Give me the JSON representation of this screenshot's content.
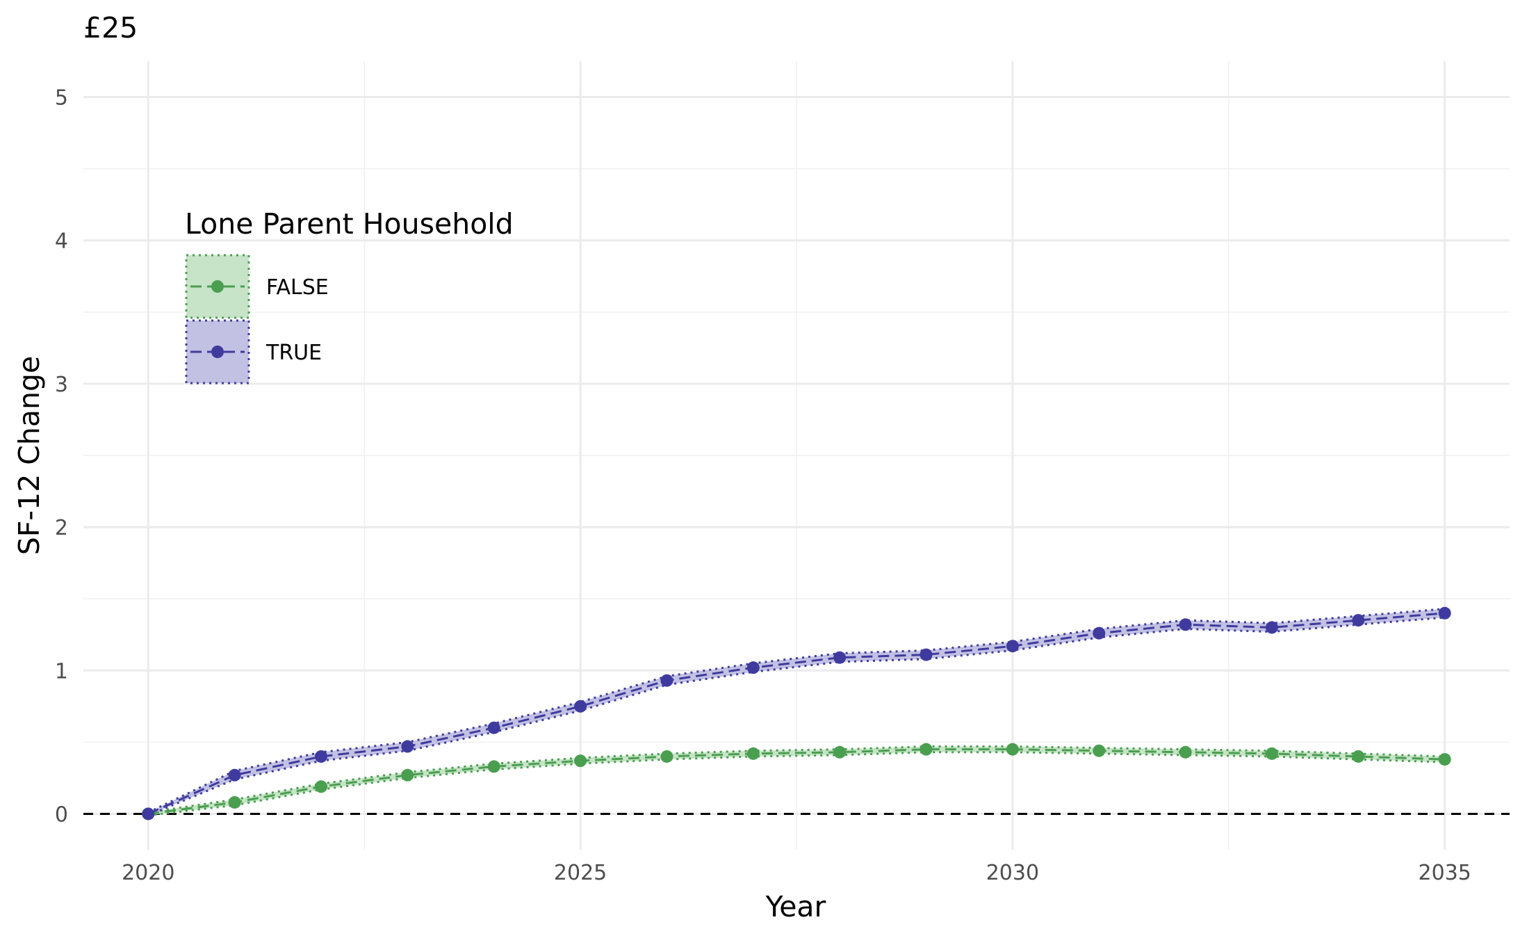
{
  "chart_data": {
    "type": "line",
    "title": "£25",
    "xlabel": "Year",
    "ylabel": "SF-12 Change",
    "xlim": [
      2019.25,
      2035.75
    ],
    "ylim": [
      -0.25,
      5.25
    ],
    "x_ticks": [
      2020,
      2025,
      2030,
      2035
    ],
    "y_ticks": [
      0,
      1,
      2,
      3,
      4,
      5
    ],
    "grid": true,
    "reference_line": {
      "y": 0,
      "style": "dashed",
      "color": "#000000"
    },
    "legend": {
      "title": "Lone Parent Household",
      "position": "top-left"
    },
    "x": [
      2020,
      2021,
      2022,
      2023,
      2024,
      2025,
      2026,
      2027,
      2028,
      2029,
      2030,
      2031,
      2032,
      2033,
      2034,
      2035
    ],
    "series": [
      {
        "name": "FALSE",
        "color": "#4a9e4f",
        "fill": "#c7e3c8",
        "values": [
          0.0,
          0.08,
          0.19,
          0.27,
          0.33,
          0.37,
          0.4,
          0.42,
          0.43,
          0.45,
          0.45,
          0.44,
          0.43,
          0.42,
          0.4,
          0.38
        ],
        "lower": [
          -0.01,
          0.06,
          0.17,
          0.25,
          0.31,
          0.35,
          0.38,
          0.4,
          0.41,
          0.43,
          0.43,
          0.42,
          0.41,
          0.4,
          0.38,
          0.36
        ],
        "upper": [
          0.01,
          0.1,
          0.21,
          0.29,
          0.35,
          0.39,
          0.42,
          0.44,
          0.45,
          0.47,
          0.47,
          0.46,
          0.45,
          0.44,
          0.42,
          0.4
        ]
      },
      {
        "name": "TRUE",
        "color": "#3f3b9e",
        "fill": "#c2c1e3",
        "values": [
          0.0,
          0.27,
          0.4,
          0.47,
          0.6,
          0.75,
          0.93,
          1.02,
          1.09,
          1.11,
          1.17,
          1.26,
          1.32,
          1.3,
          1.35,
          1.4
        ],
        "lower": [
          -0.01,
          0.24,
          0.37,
          0.44,
          0.57,
          0.72,
          0.9,
          0.99,
          1.06,
          1.08,
          1.14,
          1.23,
          1.29,
          1.27,
          1.32,
          1.37
        ],
        "upper": [
          0.01,
          0.3,
          0.43,
          0.5,
          0.63,
          0.78,
          0.96,
          1.05,
          1.12,
          1.14,
          1.2,
          1.29,
          1.35,
          1.33,
          1.38,
          1.43
        ]
      }
    ]
  }
}
